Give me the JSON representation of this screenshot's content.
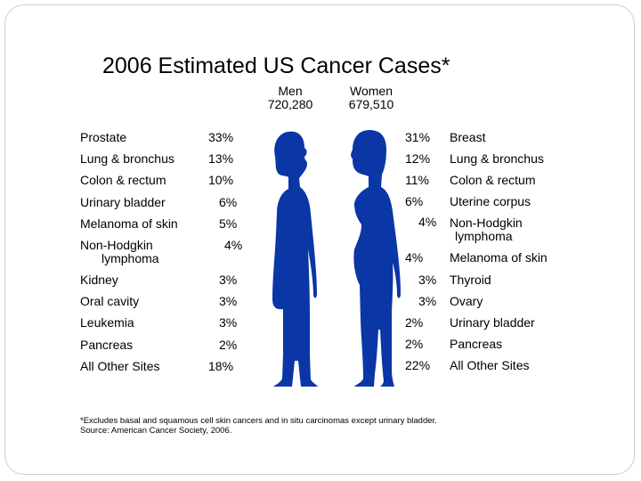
{
  "slide": {
    "title": "2006 Estimated US Cancer Cases*",
    "men": {
      "label": "Men",
      "total": "720,280"
    },
    "women": {
      "label": "Women",
      "total": "679,510"
    },
    "footnote_line1": "*Excludes basal and squamous cell skin cancers and in situ carcinomas except urinary bladder.",
    "footnote_line2": "Source: American Cancer Society, 2006.",
    "figure_color": "#0a36a6"
  },
  "chart_data": {
    "type": "table",
    "title": "2006 Estimated US Cancer Cases*",
    "men": {
      "header": "Men",
      "total": "720,280",
      "rows": [
        {
          "site": "Prostate",
          "percent": "33%"
        },
        {
          "site": "Lung & bronchus",
          "percent": "13%"
        },
        {
          "site": "Colon & rectum",
          "percent": "10%"
        },
        {
          "site": "Urinary bladder",
          "percent": "6%"
        },
        {
          "site": "Melanoma of skin",
          "percent": "5%"
        },
        {
          "site": "Non-Hodgkin lymphoma",
          "site_l1": "Non-Hodgkin",
          "site_l2": "lymphoma",
          "percent": "4%"
        },
        {
          "site": "Kidney",
          "percent": "3%"
        },
        {
          "site": "Oral cavity",
          "percent": "3%"
        },
        {
          "site": "Leukemia",
          "percent": "3%"
        },
        {
          "site": "Pancreas",
          "percent": "2%"
        },
        {
          "site": "All Other Sites",
          "percent": "18%"
        }
      ]
    },
    "women": {
      "header": "Women",
      "total": "679,510",
      "rows": [
        {
          "site": "Breast",
          "percent": "31%"
        },
        {
          "site": "Lung & bronchus",
          "percent": "12%"
        },
        {
          "site": "Colon & rectum",
          "percent": "11%"
        },
        {
          "site": "Uterine corpus",
          "percent": "6%"
        },
        {
          "site": "Non-Hodgkin lymphoma",
          "site_l1": "Non-Hodgkin",
          "site_l2": "lymphoma",
          "percent": "4%"
        },
        {
          "site": "Melanoma of skin",
          "percent": "4%"
        },
        {
          "site": "Thyroid",
          "percent": "3%"
        },
        {
          "site": "Ovary",
          "percent": "3%"
        },
        {
          "site": "Urinary bladder",
          "percent": "2%"
        },
        {
          "site": "Pancreas",
          "percent": "2%"
        },
        {
          "site": "All Other Sites",
          "percent": "22%"
        }
      ]
    }
  }
}
